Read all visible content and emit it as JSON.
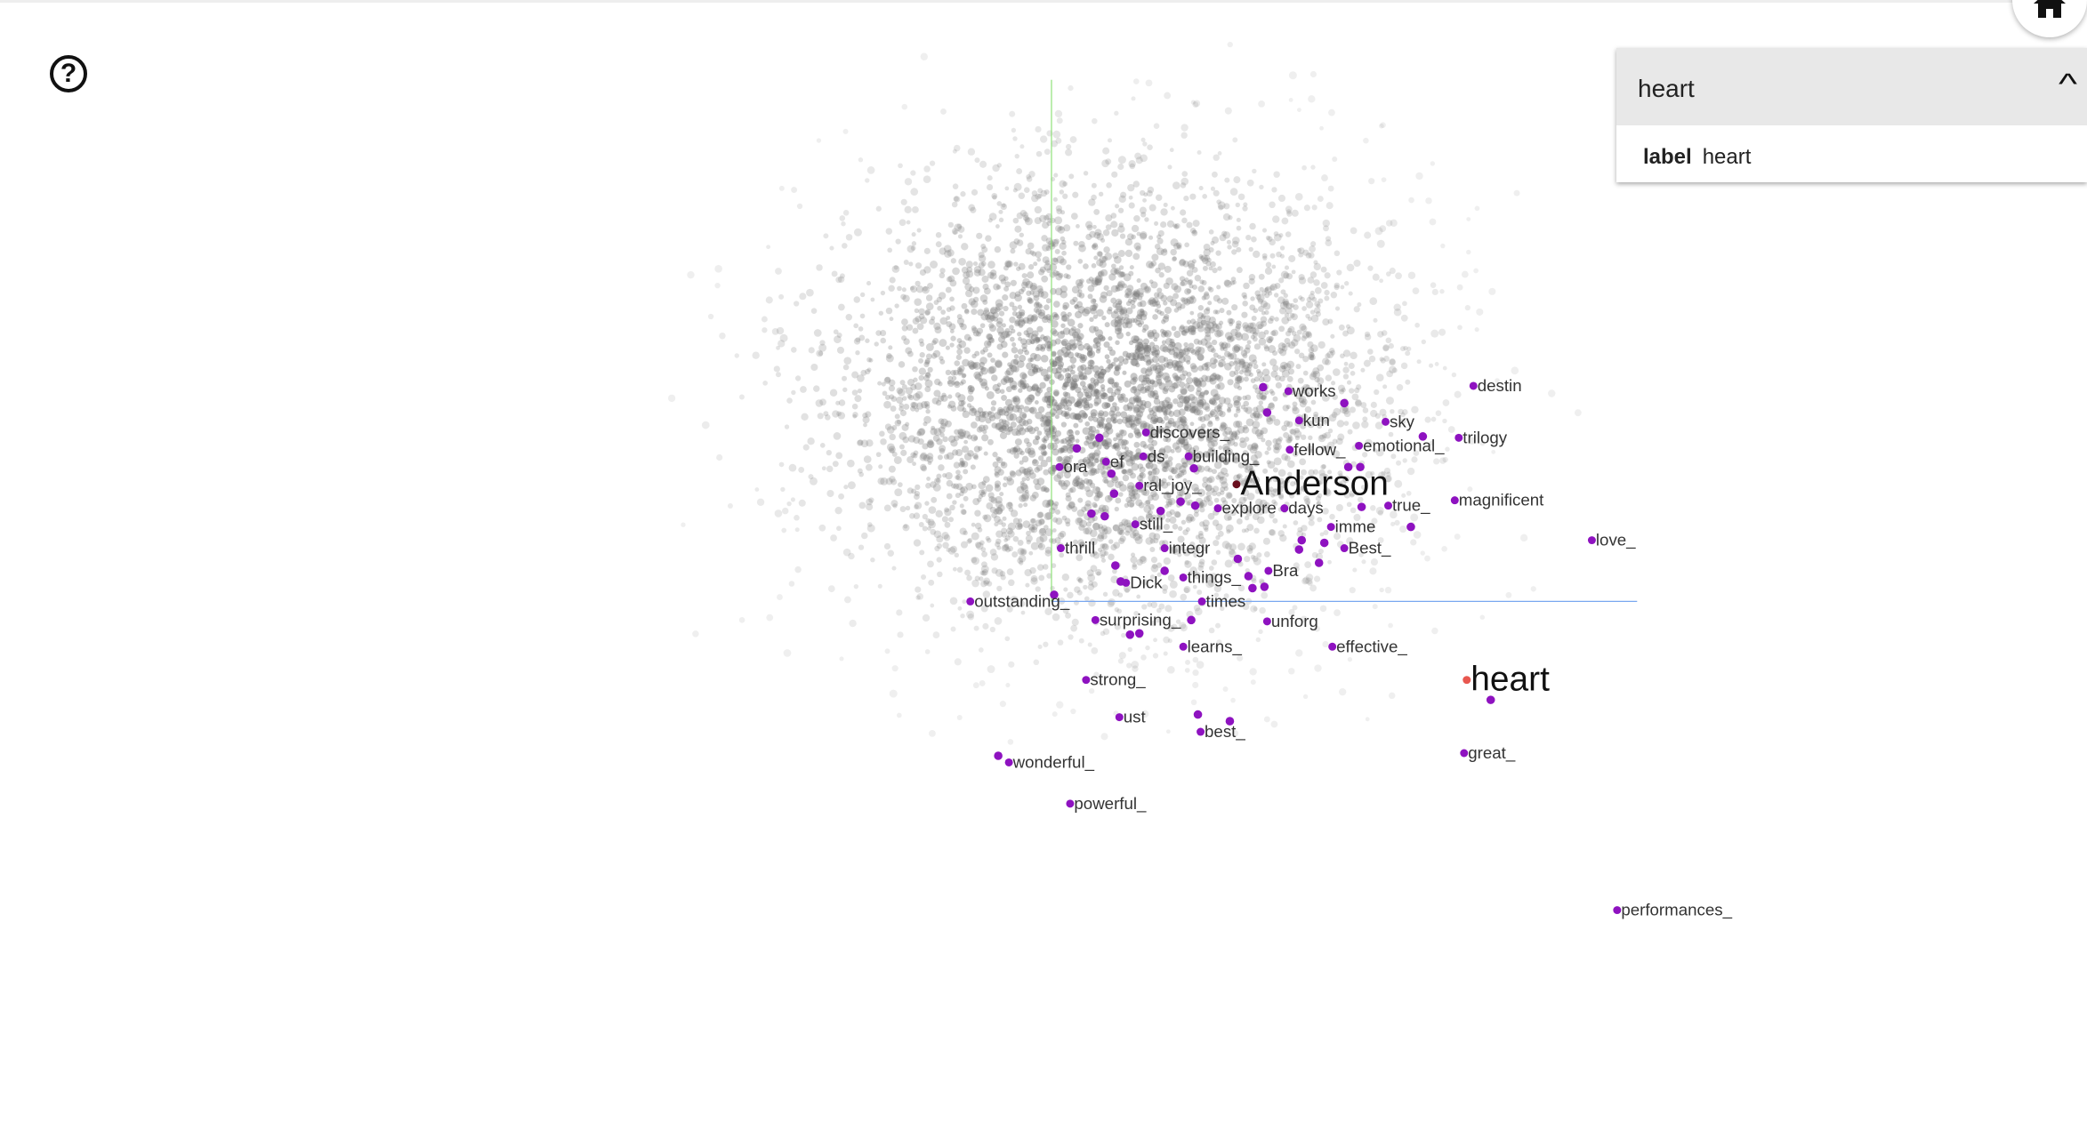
{
  "toolbar": {
    "help_icon": "help-circle-icon",
    "help_glyph": "?",
    "home_icon": "home-icon"
  },
  "inspector": {
    "title": "heart",
    "collapse_icon": "chevron-up-icon",
    "chevron_glyph": "^",
    "field_key": "label",
    "field_value": "heart"
  },
  "projection": {
    "point_color": "#8e12c0",
    "selected_color": "#e8574f",
    "highlight_color": "#6a0f1e",
    "cloud_color": "#7a7a7a",
    "axis_y_color": "#8fe07a",
    "axis_x_color": "#7aa7f0",
    "labels": [
      "works",
      "kun",
      "sky",
      "destin",
      "trilogy",
      "discovers_",
      "ds",
      "building_",
      "fellow_",
      "emotional_",
      "ora",
      "ef",
      "Anderson",
      "ral_joy_",
      "explore",
      "days",
      "true_",
      "magnificent",
      "still_",
      "imme",
      "Best_",
      "thrill",
      "integr",
      "love_",
      "Bra",
      "things_",
      "Dick",
      "outstanding_",
      "times",
      "surprising_",
      "unforg",
      "learns_",
      "effective_",
      "heart",
      "strong_",
      "ust",
      "best_",
      "wonderful_",
      "great_",
      "powerful_",
      "performances_"
    ]
  }
}
